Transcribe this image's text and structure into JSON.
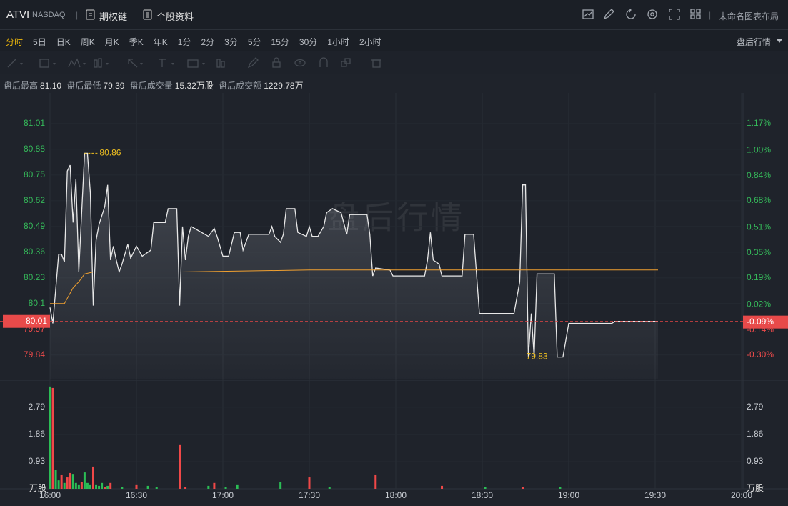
{
  "header": {
    "symbol": "ATVI",
    "exchange": "NASDAQ",
    "links": [
      "期权链",
      "个股资料"
    ],
    "layout_name": "未命名图表布局"
  },
  "tabs": {
    "items": [
      "分时",
      "5日",
      "日K",
      "周K",
      "月K",
      "季K",
      "年K",
      "1分",
      "2分",
      "3分",
      "5分",
      "15分",
      "30分",
      "1小时",
      "2小时"
    ],
    "market_mode": "盘后行情"
  },
  "stats": [
    {
      "label": "盘后最高",
      "value": "81.10"
    },
    {
      "label": "盘后最低",
      "value": "79.39"
    },
    {
      "label": "盘后成交量",
      "value": "15.32万股"
    },
    {
      "label": "盘后成交额",
      "value": "1229.78万"
    }
  ],
  "chart_data": [
    {
      "type": "line",
      "xlim": [
        "16:00",
        "20:00"
      ],
      "xticks": [
        "16:00",
        "16:30",
        "17:00",
        "17:30",
        "18:00",
        "18:30",
        "19:00",
        "19:30",
        "20:00"
      ],
      "ylim": [
        79.72,
        81.165
      ],
      "yticks": [
        81.01,
        80.88,
        80.75,
        80.62,
        80.49,
        80.36,
        80.23,
        80.1,
        79.97,
        79.84
      ],
      "y2lim": [
        -0.45,
        1.365
      ],
      "y2ticks": [
        {
          "value": 1.17,
          "label": "1.17%"
        },
        {
          "value": 1.0,
          "label": "1.00%"
        },
        {
          "value": 0.84,
          "label": "0.84%"
        },
        {
          "value": 0.68,
          "label": "0.68%"
        },
        {
          "value": 0.51,
          "label": "0.51%"
        },
        {
          "value": 0.35,
          "label": "0.35%"
        },
        {
          "value": 0.19,
          "label": "0.19%"
        },
        {
          "value": 0.02,
          "label": "0.02%"
        },
        {
          "value": -0.14,
          "label": "-0.14%"
        },
        {
          "value": -0.3,
          "label": "-0.30%"
        }
      ],
      "grid": true,
      "last": 80.01,
      "last_pct": {
        "value": -0.09,
        "label": "-0.09%"
      },
      "annotations": [
        {
          "x": "16:12",
          "value": 80.86
        },
        {
          "x": "18:46",
          "value": 79.83
        }
      ],
      "series": [
        {
          "color": "#e8e8e8",
          "area": true,
          "x": [
            "16:00",
            "16:01",
            "16:03",
            "16:04",
            "16:05",
            "16:06",
            "16:07",
            "16:08",
            "16:09",
            "16:10",
            "16:12",
            "16:13",
            "16:14",
            "16:15",
            "16:16",
            "16:17",
            "16:19",
            "16:20",
            "16:21",
            "16:22",
            "16:23",
            "16:24",
            "16:25",
            "16:27",
            "16:28",
            "16:30",
            "16:32",
            "16:34",
            "16:35",
            "16:36",
            "16:40",
            "16:41",
            "16:44",
            "16:45",
            "16:46",
            "16:47",
            "16:48",
            "16:49",
            "16:55",
            "16:57",
            "16:58",
            "17:00",
            "17:02",
            "17:04",
            "17:06",
            "17:07",
            "17:09",
            "17:16",
            "17:17",
            "17:18",
            "17:20",
            "17:21",
            "17:22",
            "17:25",
            "17:26",
            "17:29",
            "17:30",
            "17:31",
            "17:33",
            "17:35",
            "17:36",
            "17:38",
            "17:41",
            "17:43",
            "17:44",
            "17:50",
            "17:51",
            "17:52",
            "17:53",
            "17:58",
            "17:59",
            "18:10",
            "18:11",
            "18:12",
            "18:13",
            "18:15",
            "18:16",
            "18:23",
            "18:24",
            "18:27",
            "18:29",
            "18:41",
            "18:43",
            "18:44",
            "18:45",
            "18:46",
            "18:47",
            "18:48",
            "18:49",
            "18:55",
            "18:56",
            "18:58",
            "19:00",
            "19:15",
            "19:16",
            "19:31"
          ],
          "values": [
            80.08,
            80.0,
            80.35,
            80.35,
            80.31,
            80.77,
            80.8,
            80.51,
            80.73,
            80.26,
            80.86,
            80.86,
            80.66,
            80.09,
            80.42,
            80.5,
            80.59,
            80.7,
            80.32,
            80.39,
            80.32,
            80.26,
            80.3,
            80.4,
            80.33,
            80.39,
            80.34,
            80.36,
            80.37,
            80.51,
            80.51,
            80.58,
            80.58,
            80.09,
            80.49,
            80.32,
            80.44,
            80.49,
            80.44,
            80.48,
            80.44,
            80.34,
            80.34,
            80.46,
            80.46,
            80.37,
            80.45,
            80.45,
            80.49,
            80.44,
            80.41,
            80.45,
            80.58,
            80.58,
            80.46,
            80.44,
            80.49,
            80.44,
            80.44,
            80.49,
            80.56,
            80.58,
            80.56,
            80.45,
            80.55,
            80.55,
            80.45,
            80.24,
            80.28,
            80.27,
            80.24,
            80.24,
            80.32,
            80.46,
            80.32,
            80.3,
            80.24,
            80.24,
            80.45,
            80.45,
            80.05,
            80.05,
            80.21,
            80.7,
            80.7,
            79.83,
            80.05,
            79.83,
            80.25,
            80.25,
            79.83,
            79.83,
            80.0,
            80.0,
            80.01,
            80.01
          ]
        },
        {
          "color": "#f0a030",
          "area": false,
          "x": [
            "16:00",
            "16:05",
            "16:08",
            "16:10",
            "16:12",
            "16:15",
            "16:45",
            "17:30",
            "19:31"
          ],
          "values": [
            80.1,
            80.1,
            80.18,
            80.21,
            80.25,
            80.26,
            80.26,
            80.27,
            80.27
          ]
        }
      ]
    },
    {
      "type": "bar",
      "unit": "万股",
      "ylim": [
        0,
        3.57
      ],
      "yticks": [
        2.79,
        1.86,
        0.93
      ],
      "x": [
        "16:00",
        "16:01",
        "16:02",
        "16:03",
        "16:04",
        "16:05",
        "16:06",
        "16:07",
        "16:08",
        "16:09",
        "16:10",
        "16:11",
        "16:12",
        "16:13",
        "16:14",
        "16:15",
        "16:16",
        "16:17",
        "16:18",
        "16:19",
        "16:20",
        "16:21",
        "16:25",
        "16:30",
        "16:34",
        "16:37",
        "16:45",
        "16:47",
        "16:55",
        "16:57",
        "17:01",
        "17:05",
        "17:20",
        "17:30",
        "17:37",
        "17:53",
        "18:16",
        "18:31",
        "18:44",
        "18:57"
      ],
      "values": [
        3.5,
        3.45,
        0.66,
        0.29,
        0.49,
        0.2,
        0.39,
        0.54,
        0.51,
        0.2,
        0.15,
        0.22,
        0.56,
        0.2,
        0.15,
        0.76,
        0.15,
        0.1,
        0.2,
        0.07,
        0.1,
        0.2,
        0.05,
        0.15,
        0.1,
        0.07,
        1.52,
        0.07,
        0.1,
        0.2,
        0.05,
        0.15,
        0.22,
        0.39,
        0.05,
        0.49,
        0.1,
        0.05,
        0.05,
        0.05
      ],
      "colors": [
        "#2bbd55",
        "#f04848",
        "#2bbd55",
        "#2bbd55",
        "#f04848",
        "#2bbd55",
        "#f04848",
        "#f04848",
        "#2bbd55",
        "#2bbd55",
        "#2bbd55",
        "#f04848",
        "#2bbd55",
        "#2bbd55",
        "#2bbd55",
        "#f04848",
        "#2bbd55",
        "#2bbd55",
        "#2bbd55",
        "#f04848",
        "#2bbd55",
        "#f04848",
        "#2bbd55",
        "#f04848",
        "#2bbd55",
        "#2bbd55",
        "#f04848",
        "#f04848",
        "#2bbd55",
        "#f04848",
        "#2bbd55",
        "#2bbd55",
        "#2bbd55",
        "#f04848",
        "#2bbd55",
        "#f04848",
        "#f04848",
        "#2bbd55",
        "#f04848",
        "#2bbd55"
      ]
    }
  ]
}
